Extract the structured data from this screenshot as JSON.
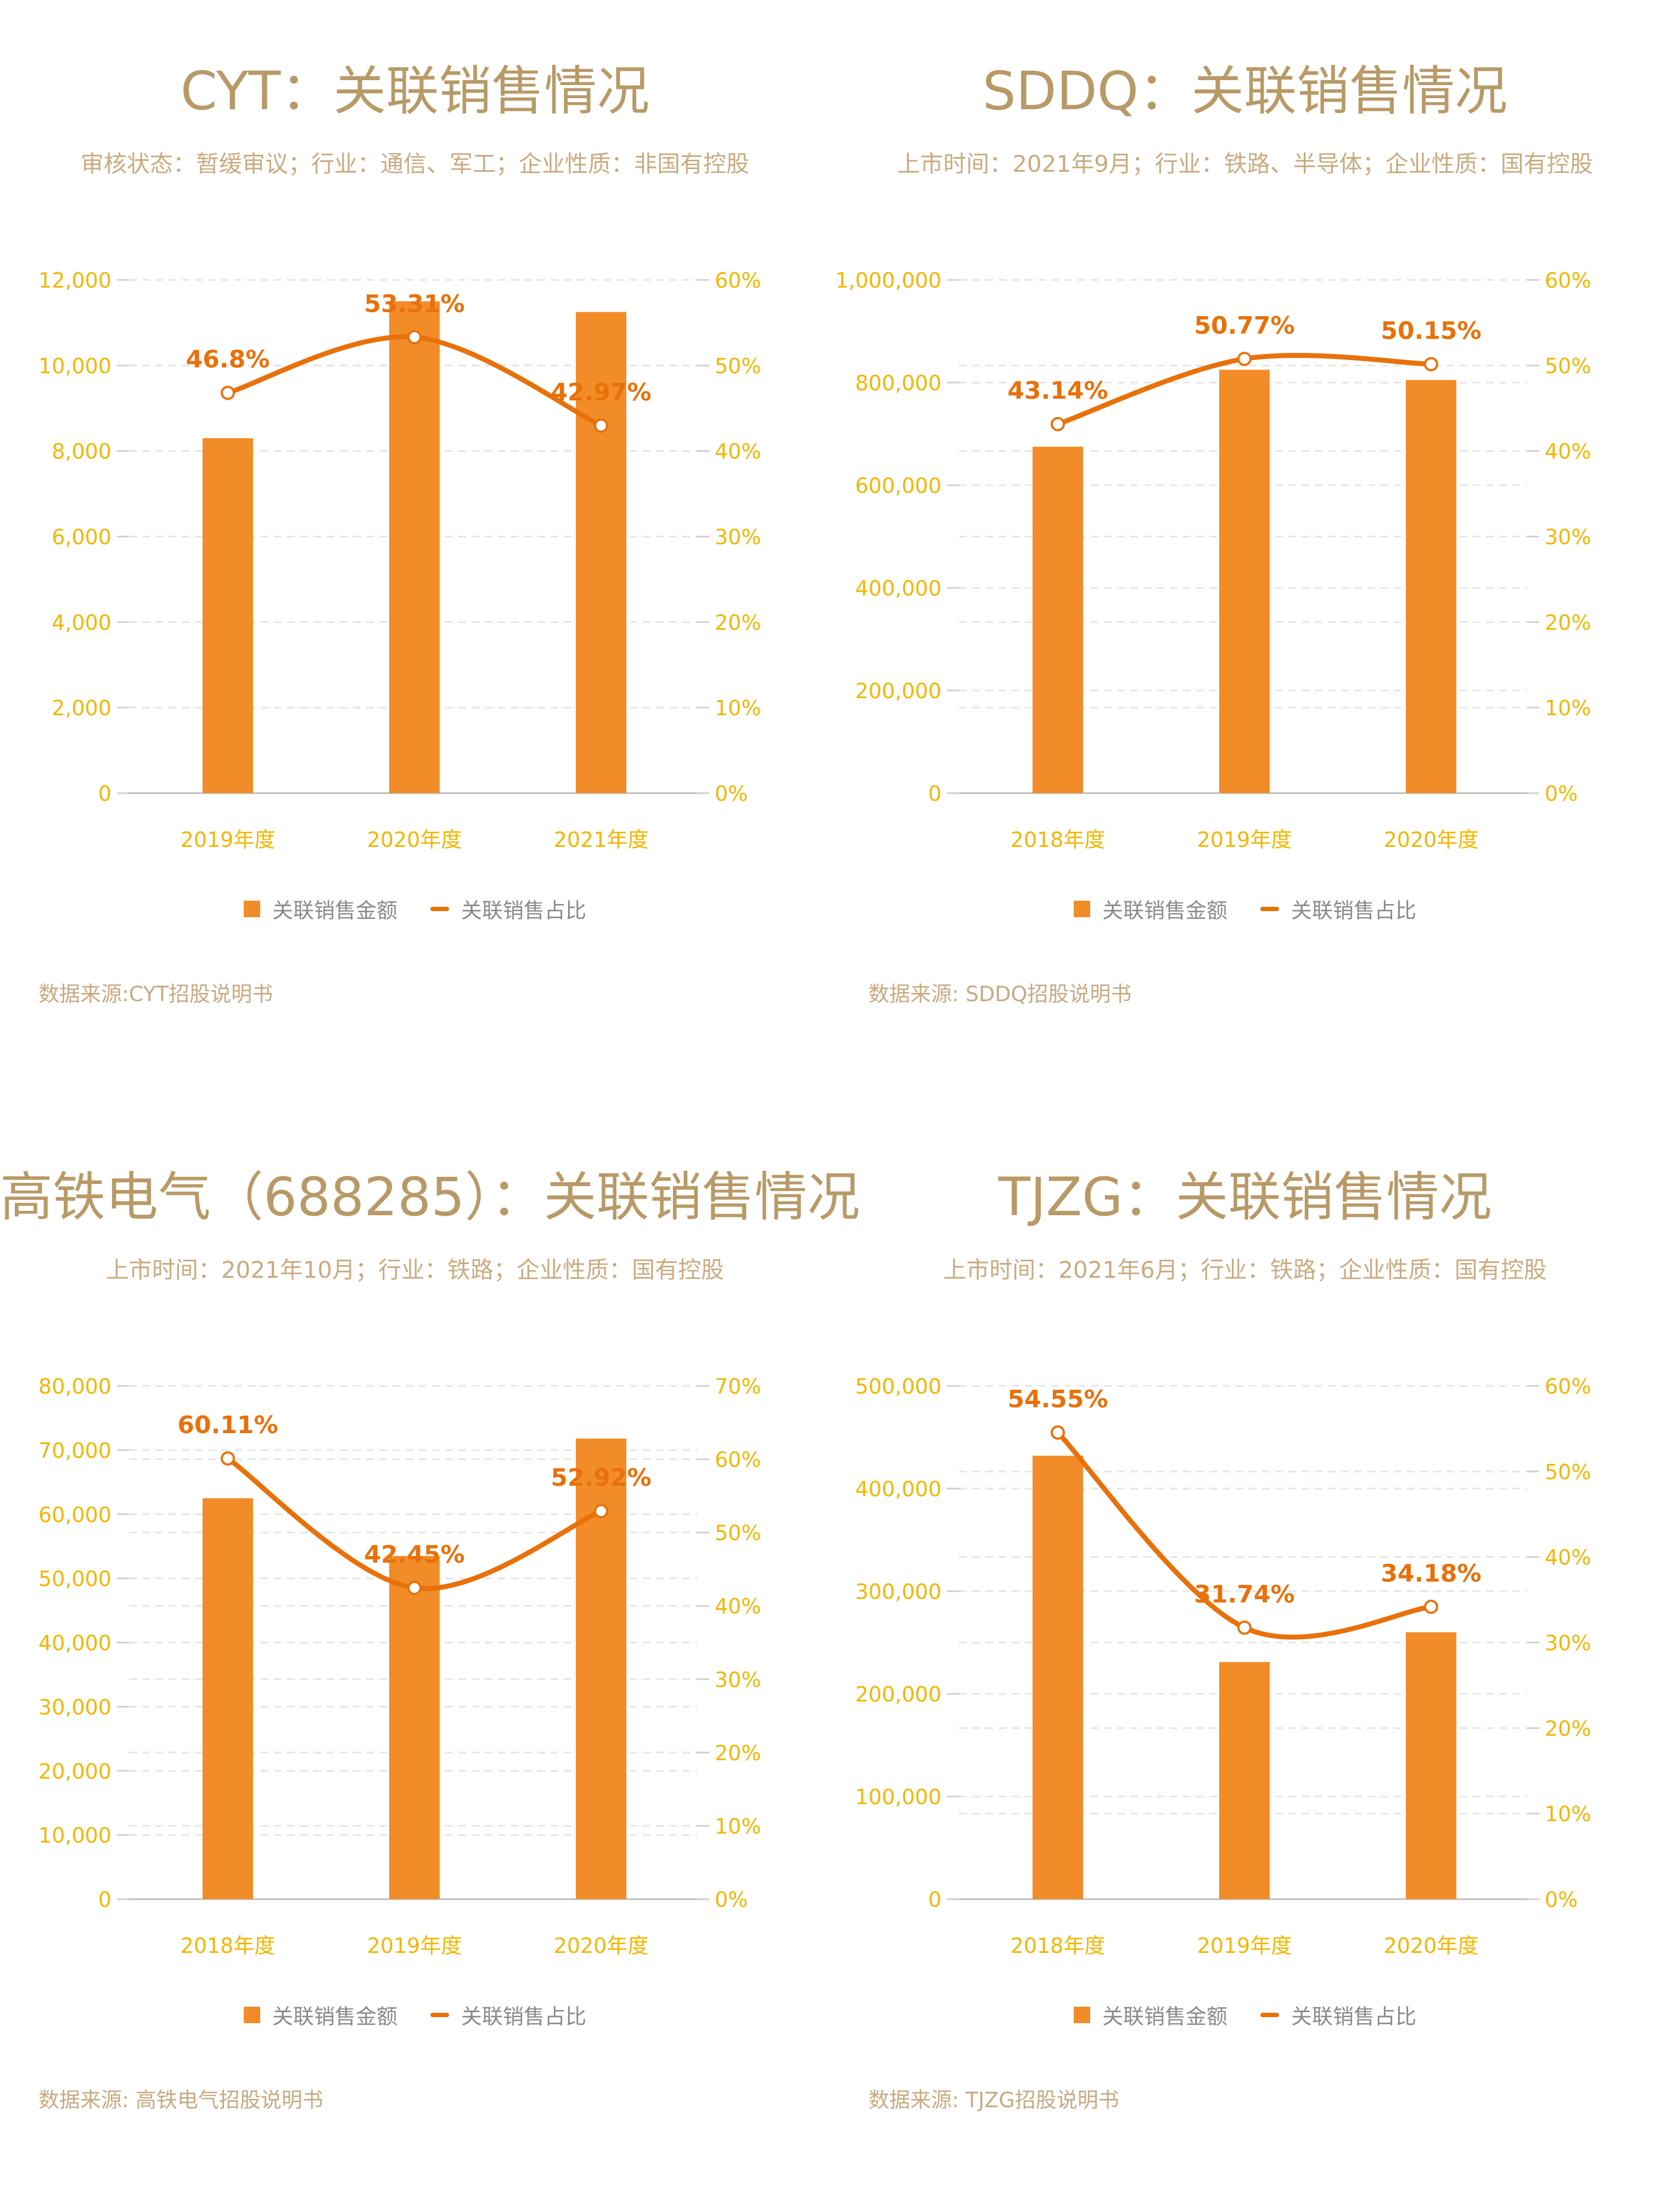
{
  "colors": {
    "bar": "#f28c28",
    "line": "#e8710a",
    "axis_text": "#f2b600",
    "title": "#b89a67",
    "subtitle": "#c9ab80",
    "grid": "#e5e5e5"
  },
  "legend": {
    "bar_label": "关联销售金额",
    "line_label": "关联销售占比"
  },
  "panels": [
    {
      "title": "CYT：关联销售情况",
      "subtitle": "审核状态：暂缓审议；行业：通信、军工；企业性质：非国有控股",
      "source": "数据来源:CYT招股说明书"
    },
    {
      "title": "SDDQ：关联销售情况",
      "subtitle": "上市时间：2021年9月；行业：铁路、半导体；企业性质：国有控股",
      "source": "数据来源: SDDQ招股说明书"
    },
    {
      "title": "高铁电气（688285）：关联销售情况",
      "subtitle": "上市时间：2021年10月；行业：铁路；企业性质：国有控股",
      "source": "数据来源: 高铁电气招股说明书"
    },
    {
      "title": "TJZG：关联销售情况",
      "subtitle": "上市时间：2021年6月；行业：铁路；企业性质：国有控股",
      "source": "数据来源: TJZG招股说明书"
    }
  ],
  "chart_data": [
    {
      "type": "bar",
      "categories": [
        "2019年度",
        "2020年度",
        "2021年度"
      ],
      "series": [
        {
          "name": "关联销售金额",
          "type": "bar",
          "axis": "left",
          "values": [
            8300,
            11500,
            11250
          ]
        },
        {
          "name": "关联销售占比",
          "type": "line",
          "axis": "right",
          "values": [
            46.8,
            53.31,
            42.97
          ],
          "labels": [
            "46.8%",
            "53.31%",
            "42.97%"
          ]
        }
      ],
      "ylim_left": [
        0,
        12000
      ],
      "yticks_left": [
        "0",
        "2,000",
        "4,000",
        "6,000",
        "8,000",
        "10,000",
        "12,000"
      ],
      "ylim_right": [
        0,
        60
      ],
      "yticks_right": [
        "0%",
        "10%",
        "20%",
        "30%",
        "40%",
        "50%",
        "60%"
      ],
      "grid": true,
      "legend": "bottom"
    },
    {
      "type": "bar",
      "categories": [
        "2018年度",
        "2019年度",
        "2020年度"
      ],
      "series": [
        {
          "name": "关联销售金额",
          "type": "bar",
          "axis": "left",
          "values": [
            675000,
            825000,
            805000
          ]
        },
        {
          "name": "关联销售占比",
          "type": "line",
          "axis": "right",
          "values": [
            43.14,
            50.77,
            50.15
          ],
          "labels": [
            "43.14%",
            "50.77%",
            "50.15%"
          ]
        }
      ],
      "ylim_left": [
        0,
        1000000
      ],
      "yticks_left": [
        "0",
        "200,000",
        "400,000",
        "600,000",
        "800,000",
        "1,000,000"
      ],
      "ylim_right": [
        0,
        60
      ],
      "yticks_right": [
        "0%",
        "10%",
        "20%",
        "30%",
        "40%",
        "50%",
        "60%"
      ],
      "grid": true,
      "legend": "bottom"
    },
    {
      "type": "bar",
      "categories": [
        "2018年度",
        "2019年度",
        "2020年度"
      ],
      "series": [
        {
          "name": "关联销售金额",
          "type": "bar",
          "axis": "left",
          "values": [
            62500,
            53500,
            71800
          ]
        },
        {
          "name": "关联销售占比",
          "type": "line",
          "axis": "right",
          "values": [
            60.11,
            42.45,
            52.92
          ],
          "labels": [
            "60.11%",
            "42.45%",
            "52.92%"
          ]
        }
      ],
      "ylim_left": [
        0,
        80000
      ],
      "yticks_left": [
        "0",
        "10,000",
        "20,000",
        "30,000",
        "40,000",
        "50,000",
        "60,000",
        "70,000",
        "80,000"
      ],
      "ylim_right": [
        0,
        70
      ],
      "yticks_right": [
        "0%",
        "10%",
        "20%",
        "30%",
        "40%",
        "50%",
        "60%",
        "70%"
      ],
      "grid": true,
      "legend": "bottom"
    },
    {
      "type": "bar",
      "categories": [
        "2018年度",
        "2019年度",
        "2020年度"
      ],
      "series": [
        {
          "name": "关联销售金额",
          "type": "bar",
          "axis": "left",
          "values": [
            432000,
            231000,
            260000
          ]
        },
        {
          "name": "关联销售占比",
          "type": "line",
          "axis": "right",
          "values": [
            54.55,
            31.74,
            34.18
          ],
          "labels": [
            "54.55%",
            "31.74%",
            "34.18%"
          ]
        }
      ],
      "ylim_left": [
        0,
        500000
      ],
      "yticks_left": [
        "0",
        "100,000",
        "200,000",
        "300,000",
        "400,000",
        "500,000"
      ],
      "ylim_right": [
        0,
        60
      ],
      "yticks_right": [
        "0%",
        "10%",
        "20%",
        "30%",
        "40%",
        "50%",
        "60%"
      ],
      "grid": true,
      "legend": "bottom"
    }
  ]
}
